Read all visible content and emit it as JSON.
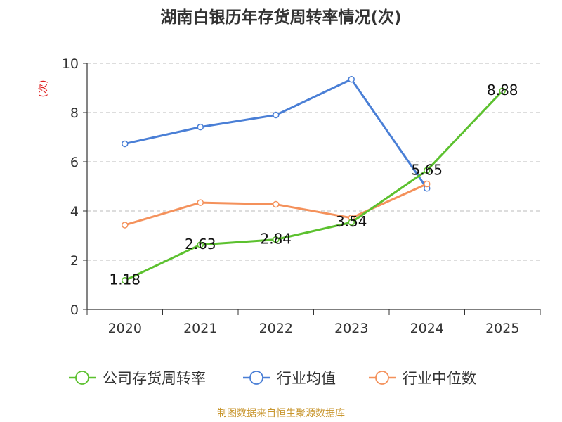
{
  "chart_data": {
    "type": "line",
    "title": "湖南白银历年存货周转率情况(次)",
    "ylabel": "(次)",
    "xlabel": "",
    "categories": [
      "2020",
      "2021",
      "2022",
      "2023",
      "2024",
      "2025"
    ],
    "ylim": [
      0,
      10
    ],
    "yticks": [
      0,
      2,
      4,
      6,
      8,
      10
    ],
    "grid": true,
    "legend_position": "bottom",
    "series": [
      {
        "name": "公司存货周转率",
        "color": "#5cc12f",
        "values": [
          1.18,
          2.63,
          2.84,
          3.54,
          5.65,
          8.88
        ],
        "labels": [
          "1.18",
          "2.63",
          "2.84",
          "3.54",
          "5.65",
          "8.88"
        ]
      },
      {
        "name": "行业均值",
        "color": "#4a7fd6",
        "values": [
          6.73,
          7.41,
          7.9,
          9.35,
          4.92,
          null
        ]
      },
      {
        "name": "行业中位数",
        "color": "#f4915b",
        "values": [
          3.43,
          4.34,
          4.27,
          3.72,
          5.1,
          null
        ]
      }
    ],
    "source": "制图数据来自恒生聚源数据库"
  }
}
